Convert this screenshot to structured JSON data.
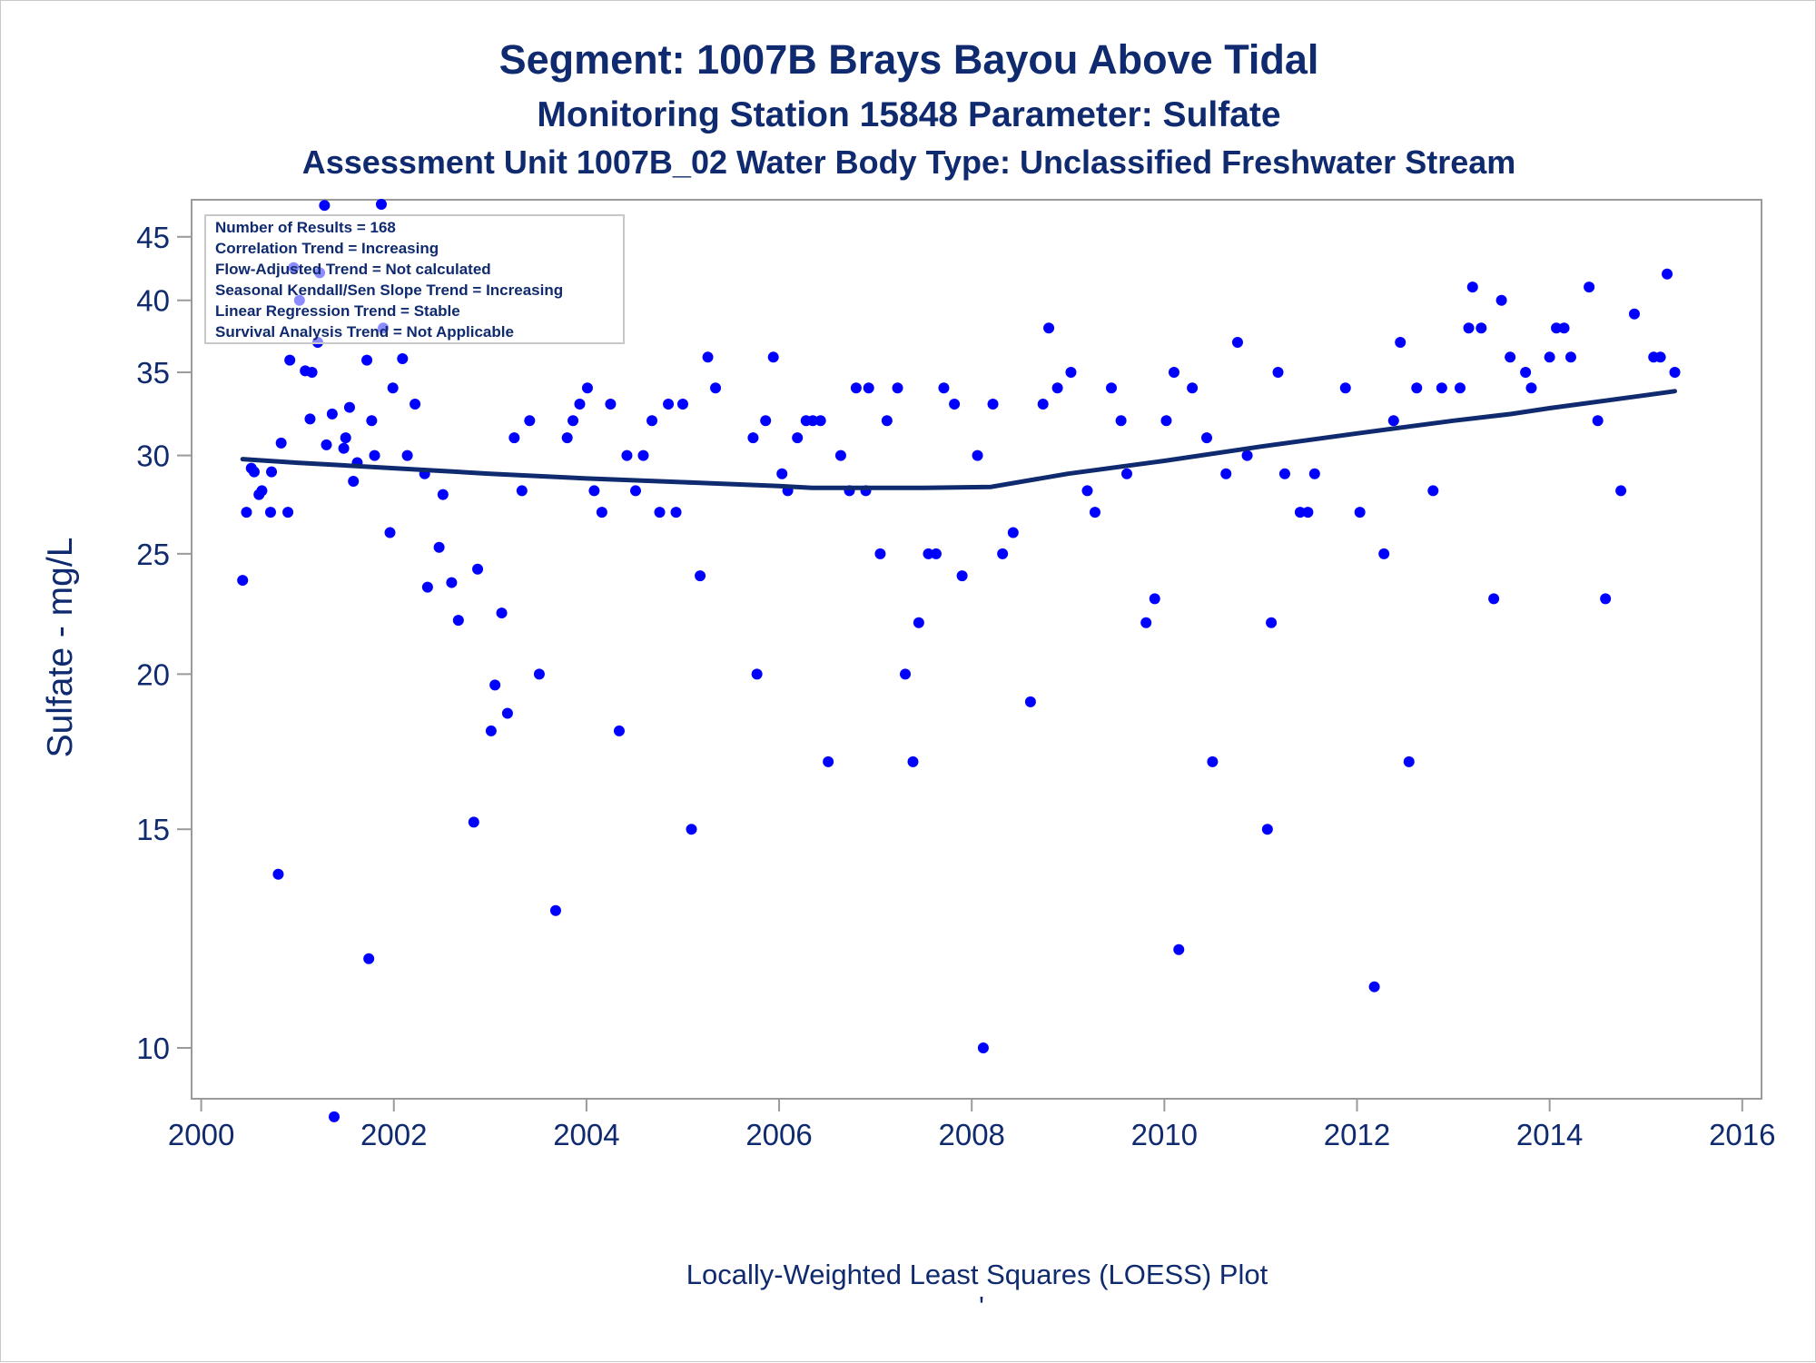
{
  "chart_data": {
    "type": "scatter",
    "title": "Segment: 1007B  Brays Bayou Above Tidal",
    "subtitle": "Monitoring Station 15848 Parameter: Sulfate",
    "subtitle2": "Assessment Unit 1007B_02   Water Body Type: Unclassified Freshwater Stream",
    "xlabel": "",
    "ylabel": "Sulfate - mg/L",
    "footnote": "Locally-Weighted Least Squares (LOESS) Plot",
    "footnote_mark": "'",
    "yscale": "log",
    "xlim": [
      1999.9,
      2016.2
    ],
    "ylim": [
      9.1,
      48.2
    ],
    "xticks": [
      "2000",
      "2002",
      "2004",
      "2006",
      "2008",
      "2010",
      "2012",
      "2014",
      "2016"
    ],
    "yticks": [
      "10",
      "15",
      "20",
      "25",
      "30",
      "35",
      "40",
      "45"
    ],
    "legend_placement": "top-left",
    "info_box": [
      "Number of Results = 168",
      "Correlation Trend = Increasing",
      "Flow-Adjusted Trend = Not calculated",
      "Seasonal Kendall/Sen Slope Trend = Increasing",
      "Linear Regression Trend = Stable",
      "Survival Analysis Trend = Not Applicable"
    ],
    "colors": {
      "points": "#0000ff",
      "loess": "#0f2a6e",
      "text": "#0f2a6e",
      "axis": "#9a9a9a"
    },
    "series": [
      {
        "type": "scatter",
        "points": [
          [
            2000.43,
            23.8
          ],
          [
            2000.47,
            27.0
          ],
          [
            2000.52,
            29.3
          ],
          [
            2000.55,
            29.1
          ],
          [
            2000.6,
            27.9
          ],
          [
            2000.63,
            28.1
          ],
          [
            2000.72,
            27.0
          ],
          [
            2000.73,
            29.1
          ],
          [
            2000.8,
            13.8
          ],
          [
            2000.83,
            30.7
          ],
          [
            2000.9,
            27.0
          ],
          [
            2000.92,
            35.8
          ],
          [
            2000.96,
            42.5
          ],
          [
            2001.02,
            40.0
          ],
          [
            2001.08,
            35.1
          ],
          [
            2001.13,
            32.1
          ],
          [
            2001.15,
            35.0
          ],
          [
            2001.21,
            37.0
          ],
          [
            2001.23,
            42.1
          ],
          [
            2001.28,
            47.7
          ],
          [
            2001.3,
            30.6
          ],
          [
            2001.36,
            32.4
          ],
          [
            2001.38,
            8.8
          ],
          [
            2001.48,
            30.4
          ],
          [
            2001.5,
            31.0
          ],
          [
            2001.54,
            32.8
          ],
          [
            2001.58,
            28.6
          ],
          [
            2001.62,
            29.6
          ],
          [
            2001.72,
            35.8
          ],
          [
            2001.74,
            11.8
          ],
          [
            2001.77,
            32.0
          ],
          [
            2001.8,
            30.0
          ],
          [
            2001.87,
            47.8
          ],
          [
            2001.89,
            38.0
          ],
          [
            2001.96,
            26.0
          ],
          [
            2001.99,
            34.0
          ],
          [
            2002.09,
            35.9
          ],
          [
            2002.14,
            30.0
          ],
          [
            2002.22,
            33.0
          ],
          [
            2002.32,
            29.0
          ],
          [
            2002.35,
            23.5
          ],
          [
            2002.47,
            25.3
          ],
          [
            2002.51,
            27.9
          ],
          [
            2002.6,
            23.7
          ],
          [
            2002.67,
            22.1
          ],
          [
            2002.83,
            15.2
          ],
          [
            2002.87,
            24.3
          ],
          [
            2003.01,
            18.0
          ],
          [
            2003.05,
            19.6
          ],
          [
            2003.12,
            22.4
          ],
          [
            2003.18,
            18.6
          ],
          [
            2003.25,
            31.0
          ],
          [
            2003.33,
            28.1
          ],
          [
            2003.41,
            32.0
          ],
          [
            2003.51,
            20.0
          ],
          [
            2003.68,
            12.9
          ],
          [
            2003.8,
            31.0
          ],
          [
            2003.86,
            32.0
          ],
          [
            2003.93,
            33.0
          ],
          [
            2004.01,
            34.0
          ],
          [
            2004.08,
            28.1
          ],
          [
            2004.16,
            27.0
          ],
          [
            2004.25,
            33.0
          ],
          [
            2004.34,
            18.0
          ],
          [
            2004.42,
            30.0
          ],
          [
            2004.51,
            28.1
          ],
          [
            2004.59,
            30.0
          ],
          [
            2004.68,
            32.0
          ],
          [
            2004.76,
            27.0
          ],
          [
            2004.85,
            33.0
          ],
          [
            2004.93,
            27.0
          ],
          [
            2005.0,
            33.0
          ],
          [
            2005.09,
            15.0
          ],
          [
            2005.18,
            24.0
          ],
          [
            2005.26,
            36.0
          ],
          [
            2005.34,
            34.0
          ],
          [
            2005.73,
            31.0
          ],
          [
            2005.77,
            20.0
          ],
          [
            2005.86,
            32.0
          ],
          [
            2005.94,
            36.0
          ],
          [
            2006.03,
            29.0
          ],
          [
            2006.09,
            28.1
          ],
          [
            2006.19,
            31.0
          ],
          [
            2006.28,
            32.0
          ],
          [
            2006.35,
            32.0
          ],
          [
            2006.43,
            32.0
          ],
          [
            2006.51,
            17.0
          ],
          [
            2006.64,
            30.0
          ],
          [
            2006.73,
            28.1
          ],
          [
            2006.8,
            34.0
          ],
          [
            2006.9,
            28.1
          ],
          [
            2006.93,
            34.0
          ],
          [
            2007.05,
            25.0
          ],
          [
            2007.12,
            32.0
          ],
          [
            2007.23,
            34.0
          ],
          [
            2007.31,
            20.0
          ],
          [
            2007.39,
            17.0
          ],
          [
            2007.45,
            22.0
          ],
          [
            2007.55,
            25.0
          ],
          [
            2007.63,
            25.0
          ],
          [
            2007.71,
            34.0
          ],
          [
            2007.82,
            33.0
          ],
          [
            2007.9,
            24.0
          ],
          [
            2008.06,
            30.0
          ],
          [
            2008.12,
            10.0
          ],
          [
            2008.22,
            33.0
          ],
          [
            2008.32,
            25.0
          ],
          [
            2008.43,
            26.0
          ],
          [
            2008.61,
            19.0
          ],
          [
            2008.74,
            33.0
          ],
          [
            2008.8,
            38.0
          ],
          [
            2008.89,
            34.0
          ],
          [
            2009.03,
            35.0
          ],
          [
            2009.2,
            28.1
          ],
          [
            2009.28,
            27.0
          ],
          [
            2009.45,
            34.0
          ],
          [
            2009.55,
            32.0
          ],
          [
            2009.61,
            29.0
          ],
          [
            2009.81,
            22.0
          ],
          [
            2009.9,
            23.0
          ],
          [
            2010.02,
            32.0
          ],
          [
            2010.1,
            35.0
          ],
          [
            2010.15,
            12.0
          ],
          [
            2010.29,
            34.0
          ],
          [
            2010.44,
            31.0
          ],
          [
            2010.5,
            17.0
          ],
          [
            2010.64,
            29.0
          ],
          [
            2010.76,
            37.0
          ],
          [
            2010.86,
            30.0
          ],
          [
            2011.07,
            15.0
          ],
          [
            2011.11,
            22.0
          ],
          [
            2011.18,
            35.0
          ],
          [
            2011.25,
            29.0
          ],
          [
            2011.41,
            27.0
          ],
          [
            2011.49,
            27.0
          ],
          [
            2011.56,
            29.0
          ],
          [
            2011.88,
            34.0
          ],
          [
            2012.03,
            27.0
          ],
          [
            2012.18,
            11.2
          ],
          [
            2012.28,
            25.0
          ],
          [
            2012.38,
            32.0
          ],
          [
            2012.45,
            37.0
          ],
          [
            2012.54,
            17.0
          ],
          [
            2012.62,
            34.0
          ],
          [
            2012.79,
            28.1
          ],
          [
            2012.88,
            34.0
          ],
          [
            2013.07,
            34.0
          ],
          [
            2013.16,
            38.0
          ],
          [
            2013.2,
            41.0
          ],
          [
            2013.29,
            38.0
          ],
          [
            2013.42,
            23.0
          ],
          [
            2013.5,
            40.0
          ],
          [
            2013.59,
            36.0
          ],
          [
            2013.75,
            35.0
          ],
          [
            2013.81,
            34.0
          ],
          [
            2014.0,
            36.0
          ],
          [
            2014.07,
            38.0
          ],
          [
            2014.15,
            38.0
          ],
          [
            2014.22,
            36.0
          ],
          [
            2014.41,
            41.0
          ],
          [
            2014.5,
            32.0
          ],
          [
            2014.58,
            23.0
          ],
          [
            2014.74,
            28.1
          ],
          [
            2014.88,
            39.0
          ],
          [
            2015.08,
            36.0
          ],
          [
            2015.15,
            36.0
          ],
          [
            2015.22,
            42.0
          ],
          [
            2015.3,
            35.0
          ]
        ]
      },
      {
        "type": "line",
        "points": [
          [
            2000.43,
            29.8
          ],
          [
            2001.0,
            29.6
          ],
          [
            2002.0,
            29.3
          ],
          [
            2003.0,
            29.0
          ],
          [
            2004.0,
            28.75
          ],
          [
            2005.0,
            28.55
          ],
          [
            2006.0,
            28.35
          ],
          [
            2006.35,
            28.25
          ],
          [
            2007.0,
            28.25
          ],
          [
            2007.5,
            28.25
          ],
          [
            2008.2,
            28.3
          ],
          [
            2009.0,
            29.0
          ],
          [
            2010.0,
            29.7
          ],
          [
            2011.0,
            30.5
          ],
          [
            2012.0,
            31.25
          ],
          [
            2013.0,
            32.0
          ],
          [
            2013.6,
            32.4
          ],
          [
            2014.0,
            32.75
          ],
          [
            2015.0,
            33.55
          ],
          [
            2015.3,
            33.8
          ]
        ]
      }
    ]
  }
}
